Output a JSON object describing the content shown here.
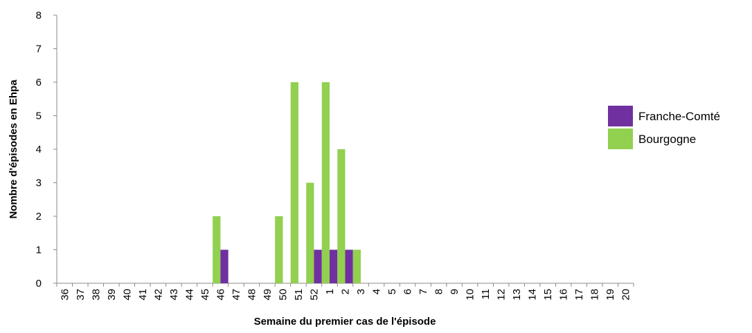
{
  "chart_data": {
    "type": "bar",
    "x_label": "Semaine du premier cas de l'épisode",
    "y_label": "Nombre d'épisodes en Ehpa",
    "categories": [
      "36",
      "37",
      "38",
      "39",
      "40",
      "41",
      "42",
      "43",
      "44",
      "45",
      "46",
      "47",
      "48",
      "49",
      "50",
      "51",
      "52",
      "1",
      "2",
      "3",
      "4",
      "5",
      "6",
      "7",
      "8",
      "9",
      "10",
      "11",
      "12",
      "13",
      "14",
      "15",
      "16",
      "17",
      "18",
      "19",
      "20"
    ],
    "series": [
      {
        "name": "Franche-Comté",
        "color": "#7030a0",
        "values": [
          0,
          0,
          0,
          0,
          0,
          0,
          0,
          0,
          0,
          0,
          1,
          0,
          0,
          0,
          0,
          0,
          1,
          1,
          1,
          0,
          0,
          0,
          0,
          0,
          0,
          0,
          0,
          0,
          0,
          0,
          0,
          0,
          0,
          0,
          0,
          0,
          0
        ]
      },
      {
        "name": "Bourgogne",
        "color": "#92d050",
        "values": [
          0,
          0,
          0,
          0,
          0,
          0,
          0,
          0,
          0,
          0,
          2,
          0,
          0,
          0,
          2,
          6,
          3,
          6,
          4,
          1,
          0,
          0,
          0,
          0,
          0,
          0,
          0,
          0,
          0,
          0,
          0,
          0,
          0,
          0,
          0,
          0,
          0
        ]
      }
    ],
    "ylim": [
      0,
      8
    ],
    "yticks": [
      0,
      1,
      2,
      3,
      4,
      5,
      6,
      7,
      8
    ],
    "grid": false,
    "legend": "right"
  }
}
